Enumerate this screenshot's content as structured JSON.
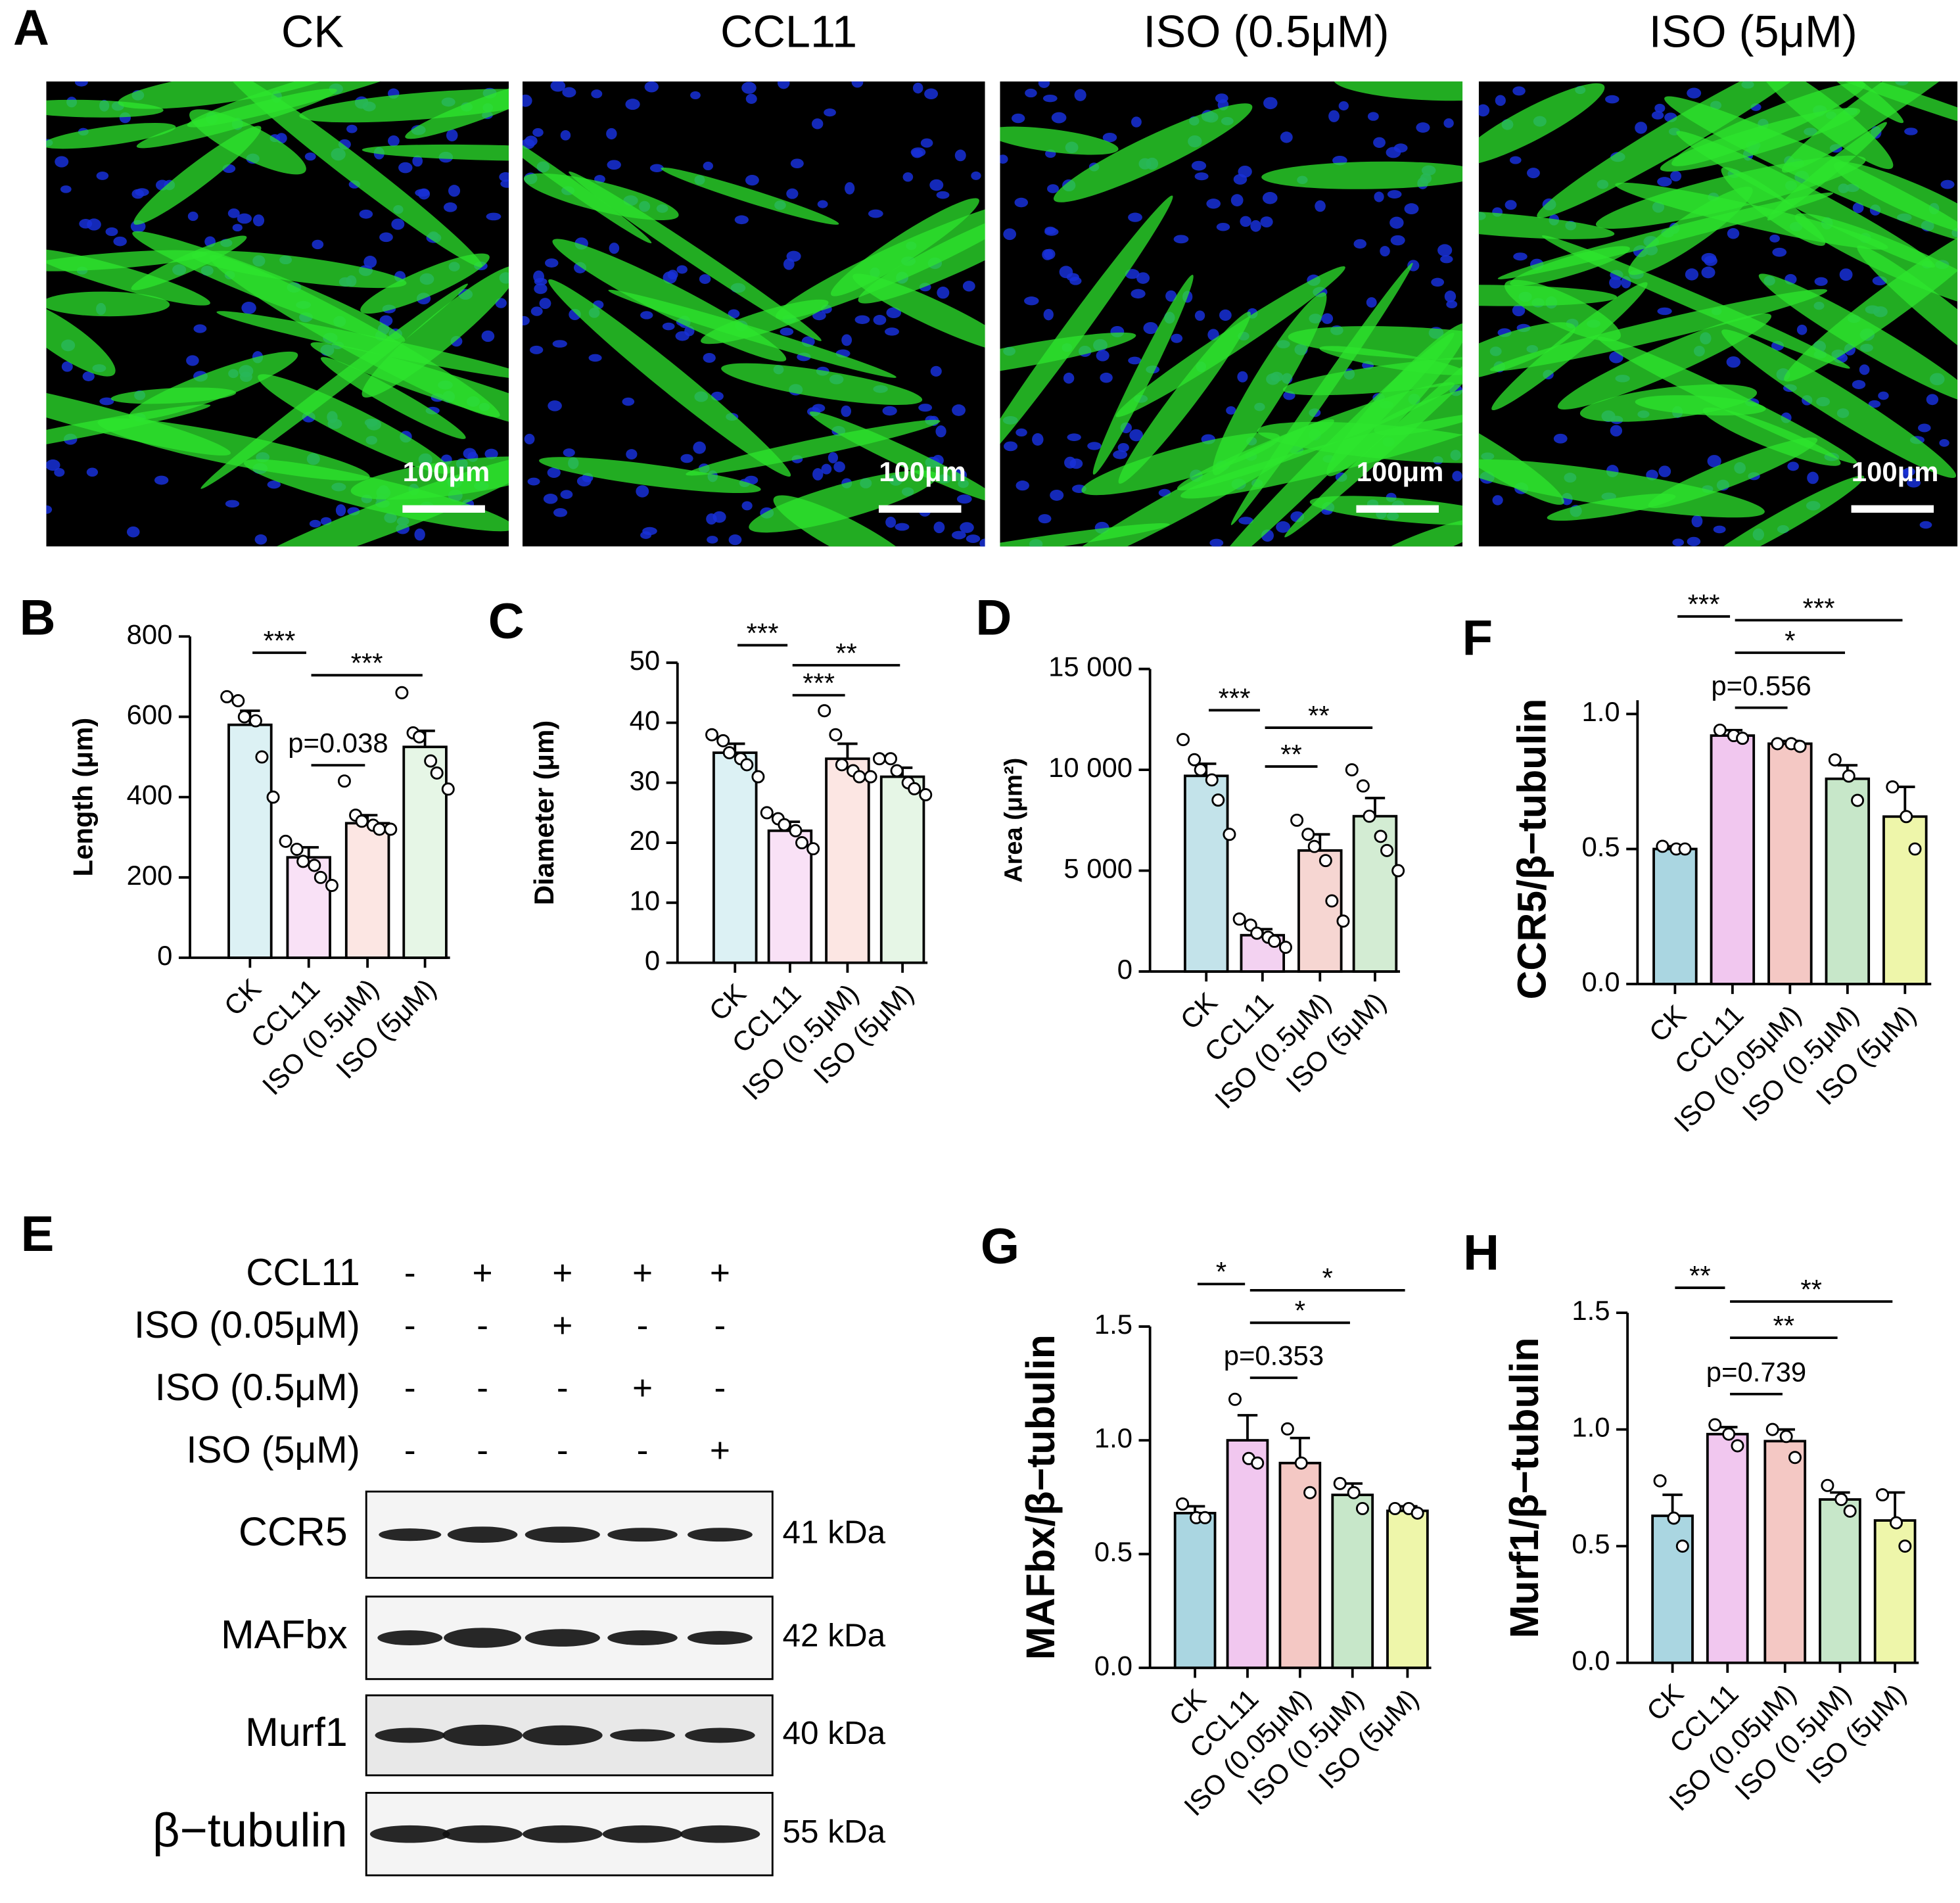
{
  "panel_a": {
    "label": "A",
    "images": [
      {
        "title": "CK",
        "scale_bar": "100μm"
      },
      {
        "title": "CCL11",
        "scale_bar": "100μm"
      },
      {
        "title": "ISO (0.5μM)",
        "scale_bar": "100μm"
      },
      {
        "title": "ISO (5μM)",
        "scale_bar": "100μm"
      }
    ]
  },
  "panel_e": {
    "label": "E",
    "conditions": [
      {
        "name": "CCL11",
        "marks": [
          "-",
          "+",
          "+",
          "+",
          "+"
        ]
      },
      {
        "name": "ISO (0.05μM)",
        "marks": [
          "-",
          "-",
          "+",
          "-",
          "-"
        ]
      },
      {
        "name": "ISO (0.5μM)",
        "marks": [
          "-",
          "-",
          "-",
          "+",
          "-"
        ]
      },
      {
        "name": "ISO (5μM)",
        "marks": [
          "-",
          "-",
          "-",
          "-",
          "+"
        ]
      }
    ],
    "blots": [
      {
        "name": "CCR5",
        "size": "41 kDa"
      },
      {
        "name": "MAFbx",
        "size": "42 kDa"
      },
      {
        "name": "Murf1",
        "size": "40 kDa"
      },
      {
        "name": "β−tubulin",
        "size": "55 kDa"
      }
    ]
  },
  "chart_data": [
    {
      "type": "bar",
      "label": "B",
      "ylabel": "Length (μm)",
      "categories": [
        "CK",
        "CCL11",
        "ISO (0.5μM)",
        "ISO (5μM)"
      ],
      "values": [
        580,
        250,
        335,
        525
      ],
      "errors": [
        35,
        25,
        20,
        40
      ],
      "points": [
        [
          650,
          640,
          600,
          590,
          500,
          400
        ],
        [
          290,
          270,
          240,
          230,
          200,
          180
        ],
        [
          440,
          355,
          340,
          330,
          320,
          320
        ],
        [
          660,
          560,
          550,
          490,
          460,
          420
        ]
      ],
      "colors": [
        "#dcf1f4",
        "#f9e1f6",
        "#fce6e3",
        "#e6f6e6"
      ],
      "ylim": [
        0,
        800
      ],
      "yticks": [
        0,
        200,
        400,
        600,
        800
      ],
      "annotations": [
        {
          "text": "***",
          "between": [
            0,
            1
          ]
        },
        {
          "text": "***",
          "between": [
            1,
            3
          ]
        },
        {
          "text": "p=0.038",
          "between": [
            1,
            2
          ]
        }
      ]
    },
    {
      "type": "bar",
      "label": "C",
      "ylabel": "Diameter (μm)",
      "categories": [
        "CK",
        "CCL11",
        "ISO (0.5μM)",
        "ISO (5μM)"
      ],
      "values": [
        35,
        22,
        34,
        31
      ],
      "errors": [
        1.5,
        1.5,
        2.5,
        1.5
      ],
      "points": [
        [
          38,
          37,
          35,
          34,
          33,
          31
        ],
        [
          25,
          24,
          23,
          22,
          20,
          19
        ],
        [
          42,
          38,
          33,
          32,
          31,
          31
        ],
        [
          34,
          34,
          32,
          30,
          29,
          28
        ]
      ],
      "colors": [
        "#dcf1f4",
        "#f9e1f6",
        "#fce6e3",
        "#e6f6e6"
      ],
      "ylim": [
        0,
        50
      ],
      "yticks": [
        0,
        10,
        20,
        30,
        40,
        50
      ],
      "annotations": [
        {
          "text": "***",
          "between": [
            0,
            1
          ]
        },
        {
          "text": "**",
          "between": [
            1,
            3
          ]
        },
        {
          "text": "***",
          "between": [
            1,
            2
          ]
        }
      ]
    },
    {
      "type": "bar",
      "label": "D",
      "ylabel": "Area (μm²)",
      "categories": [
        "CK",
        "CCL11",
        "ISO (0.5μM)",
        "ISO (5μM)"
      ],
      "values": [
        9700,
        1800,
        6000,
        7700
      ],
      "errors": [
        600,
        300,
        800,
        900
      ],
      "points": [
        [
          11500,
          10500,
          10000,
          9500,
          8500,
          6800
        ],
        [
          2600,
          2300,
          1900,
          1700,
          1500,
          1200
        ],
        [
          7500,
          6800,
          6200,
          5500,
          3500,
          2500
        ],
        [
          10000,
          9200,
          7700,
          6700,
          6000,
          5000
        ]
      ],
      "colors": [
        "#c3e3ea",
        "#f3d2f1",
        "#f6d6d2",
        "#d3ecd3"
      ],
      "ylim": [
        0,
        15000
      ],
      "yticks": [
        0,
        {
          "value": 5000,
          "label": "5 000"
        },
        {
          "value": 10000,
          "label": "10 000"
        },
        {
          "value": 15000,
          "label": "15 000"
        }
      ],
      "annotations": [
        {
          "text": "***",
          "between": [
            0,
            1
          ]
        },
        {
          "text": "**",
          "between": [
            1,
            3
          ]
        },
        {
          "text": "**",
          "between": [
            1,
            2
          ]
        }
      ]
    },
    {
      "type": "bar",
      "label": "F",
      "ylabel": "CCR5/β−tubulin",
      "categories": [
        "CK",
        "CCL11",
        "ISO (0.05μM)",
        "ISO (0.5μM)",
        "ISO (5μM)"
      ],
      "values": [
        0.5,
        0.92,
        0.89,
        0.76,
        0.62
      ],
      "errors": [
        0.01,
        0.02,
        0.01,
        0.05,
        0.11
      ],
      "points": [
        [
          0.51,
          0.5,
          0.5
        ],
        [
          0.94,
          0.92,
          0.91
        ],
        [
          0.89,
          0.89,
          0.88
        ],
        [
          0.83,
          0.77,
          0.68
        ],
        [
          0.73,
          0.62,
          0.5
        ]
      ],
      "colors": [
        "#aad6e1",
        "#f1c7ef",
        "#f4c8c4",
        "#c7e7c9",
        "#eef6aa"
      ],
      "ylim": [
        0,
        1
      ],
      "yticks": [
        {
          "value": 0,
          "label": "0.0"
        },
        {
          "value": 0.5,
          "label": "0.5"
        },
        {
          "value": 1,
          "label": "1.0"
        }
      ],
      "annotations": [
        {
          "text": "***",
          "between": [
            0,
            1
          ]
        },
        {
          "text": "***",
          "between": [
            1,
            4
          ]
        },
        {
          "text": "*",
          "between": [
            1,
            3
          ]
        },
        {
          "text": "p=0.556",
          "between": [
            1,
            2
          ]
        }
      ]
    },
    {
      "type": "bar",
      "label": "G",
      "ylabel": "MAFbx/β−tubulin",
      "categories": [
        "CK",
        "CCL11",
        "ISO (0.05μM)",
        "ISO (0.5μM)",
        "ISO (5μM)"
      ],
      "values": [
        0.68,
        1.0,
        0.9,
        0.76,
        0.69
      ],
      "errors": [
        0.03,
        0.11,
        0.11,
        0.05,
        0.02
      ],
      "points": [
        [
          0.72,
          0.66,
          0.66
        ],
        [
          1.18,
          0.92,
          0.9
        ],
        [
          1.05,
          0.9,
          0.77
        ],
        [
          0.81,
          0.77,
          0.7
        ],
        [
          0.7,
          0.7,
          0.68
        ]
      ],
      "colors": [
        "#aad6e1",
        "#f1c7ef",
        "#f4c8c4",
        "#c7e7c9",
        "#eef6aa"
      ],
      "ylim": [
        0,
        1.5
      ],
      "yticks": [
        {
          "value": 0,
          "label": "0.0"
        },
        {
          "value": 0.5,
          "label": "0.5"
        },
        {
          "value": 1,
          "label": "1.0"
        },
        {
          "value": 1.5,
          "label": "1.5"
        }
      ],
      "annotations": [
        {
          "text": "*",
          "between": [
            0,
            1
          ]
        },
        {
          "text": "*",
          "between": [
            1,
            4
          ]
        },
        {
          "text": "*",
          "between": [
            1,
            3
          ]
        },
        {
          "text": "p=0.353",
          "between": [
            1,
            2
          ]
        }
      ]
    },
    {
      "type": "bar",
      "label": "H",
      "ylabel": "Murf1/β−tubulin",
      "categories": [
        "CK",
        "CCL11",
        "ISO (0.05μM)",
        "ISO (0.5μM)",
        "ISO (5μM)"
      ],
      "values": [
        0.63,
        0.98,
        0.95,
        0.7,
        0.61
      ],
      "errors": [
        0.09,
        0.03,
        0.05,
        0.03,
        0.12
      ],
      "points": [
        [
          0.78,
          0.62,
          0.5
        ],
        [
          1.02,
          0.98,
          0.93
        ],
        [
          1.0,
          0.97,
          0.88
        ],
        [
          0.76,
          0.7,
          0.65
        ],
        [
          0.72,
          0.6,
          0.5
        ]
      ],
      "colors": [
        "#aad6e1",
        "#f1c7ef",
        "#f4c8c4",
        "#c7e7c9",
        "#eef6aa"
      ],
      "ylim": [
        0,
        1.5
      ],
      "yticks": [
        {
          "value": 0,
          "label": "0.0"
        },
        {
          "value": 0.5,
          "label": "0.5"
        },
        {
          "value": 1,
          "label": "1.0"
        },
        {
          "value": 1.5,
          "label": "1.5"
        }
      ],
      "annotations": [
        {
          "text": "**",
          "between": [
            0,
            1
          ]
        },
        {
          "text": "**",
          "between": [
            1,
            4
          ]
        },
        {
          "text": "**",
          "between": [
            1,
            3
          ]
        },
        {
          "text": "p=0.739",
          "between": [
            1,
            2
          ]
        }
      ]
    }
  ]
}
